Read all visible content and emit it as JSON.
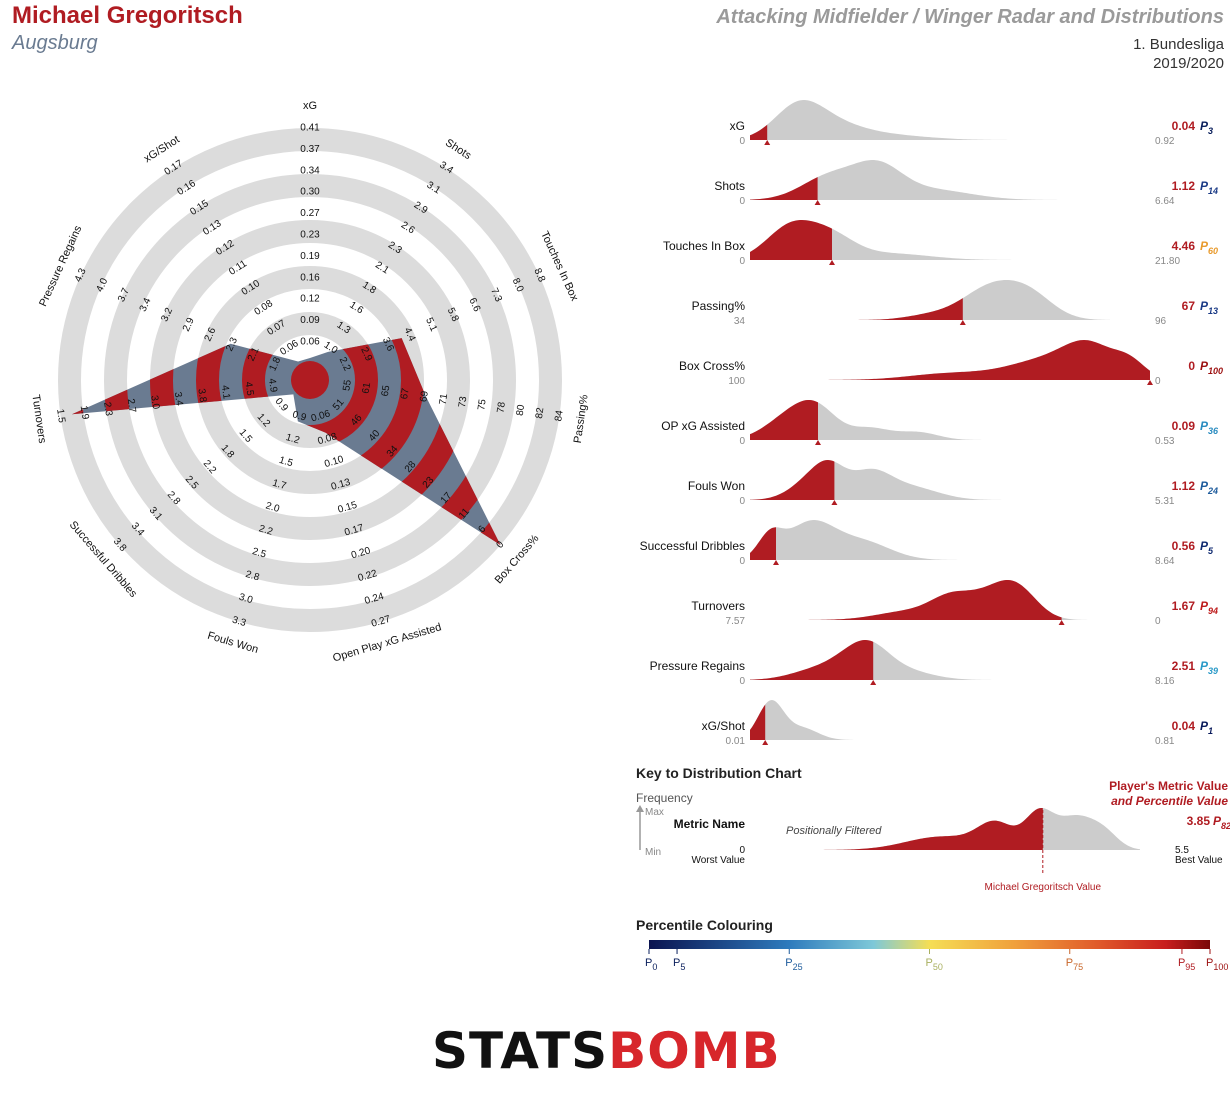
{
  "header": {
    "player_name": "Michael Gregoritsch",
    "team": "Augsburg",
    "title": "Attacking Midfielder / Winger Radar and Distributions",
    "league": "1. Bundesliga",
    "season": "2019/2020"
  },
  "colors": {
    "player_red": "#b01c22",
    "radar_blue": "#6a7b91",
    "ring_grey": "#dcdcdc",
    "dist_grey": "#cccccc"
  },
  "chart_data": [
    {
      "type": "radar",
      "metrics": [
        {
          "name": "xG",
          "ticks": [
            "0.06",
            "0.09",
            "0.12",
            "0.16",
            "0.19",
            "0.23",
            "0.27",
            "0.30",
            "0.34",
            "0.37",
            "0.41"
          ],
          "value": 0.04
        },
        {
          "name": "Shots",
          "ticks": [
            "1.0",
            "1.3",
            "1.6",
            "1.8",
            "2.1",
            "2.3",
            "2.6",
            "2.9",
            "3.1",
            "3.4"
          ],
          "value": 1.12
        },
        {
          "name": "Touches In Box",
          "ticks": [
            "2.2",
            "2.9",
            "3.6",
            "4.4",
            "5.1",
            "5.8",
            "6.6",
            "7.3",
            "8.0",
            "8.8"
          ],
          "value": 4.46
        },
        {
          "name": "Passing%",
          "ticks": [
            "55",
            "61",
            "65",
            "67",
            "69",
            "71",
            "73",
            "75",
            "78",
            "80",
            "82",
            "84"
          ],
          "value": 67
        },
        {
          "name": "Box Cross%",
          "ticks": [
            "51",
            "46",
            "40",
            "34",
            "28",
            "23",
            "17",
            "11",
            "6",
            "0"
          ],
          "value": 0
        },
        {
          "name": "Open Play xG Assisted",
          "ticks": [
            "0.06",
            "0.08",
            "0.10",
            "0.13",
            "0.15",
            "0.17",
            "0.20",
            "0.22",
            "0.24",
            "0.27"
          ],
          "value": 0.09
        },
        {
          "name": "Fouls Won",
          "ticks": [
            "0.9",
            "1.2",
            "1.5",
            "1.7",
            "2.0",
            "2.2",
            "2.5",
            "2.8",
            "3.0",
            "3.3"
          ],
          "value": 1.12
        },
        {
          "name": "Successful Dribbles",
          "ticks": [
            "0.9",
            "1.2",
            "1.5",
            "1.8",
            "2.2",
            "2.5",
            "2.8",
            "3.1",
            "3.4",
            "3.8"
          ],
          "value": 0.56
        },
        {
          "name": "Turnovers",
          "ticks": [
            "4.9",
            "4.5",
            "4.1",
            "3.8",
            "3.4",
            "3.0",
            "2.7",
            "2.3",
            "1.9",
            "1.5"
          ],
          "value": 1.67
        },
        {
          "name": "Pressure Regains",
          "ticks": [
            "1.8",
            "2.1",
            "2.3",
            "2.6",
            "2.9",
            "3.2",
            "3.4",
            "3.7",
            "4.0",
            "4.3"
          ],
          "value": 2.51
        },
        {
          "name": "xG/Shot",
          "ticks": [
            "0.06",
            "0.07",
            "0.08",
            "0.10",
            "0.11",
            "0.12",
            "0.13",
            "0.15",
            "0.16",
            "0.17"
          ],
          "value": 0.04
        }
      ]
    },
    {
      "type": "area",
      "distributions": [
        {
          "name": "xG",
          "min": "0",
          "max": "0.92",
          "value": "0.04",
          "pct": 3,
          "marker": 0.043,
          "pct_color": "#0a1f5c"
        },
        {
          "name": "Shots",
          "min": "0",
          "max": "6.64",
          "value": "1.12",
          "pct": 14,
          "marker": 0.169,
          "pct_color": "#1a3a86"
        },
        {
          "name": "Touches In Box",
          "min": "0",
          "max": "21.80",
          "value": "4.46",
          "pct": 60,
          "marker": 0.205,
          "pct_color": "#e89a2c"
        },
        {
          "name": "Passing%",
          "min": "34",
          "max": "96",
          "value": "67",
          "pct": 13,
          "marker": 0.532,
          "pct_color": "#1a3a86"
        },
        {
          "name": "Box Cross%",
          "min": "100",
          "max": "0",
          "value": "0",
          "pct": 100,
          "marker": 1.0,
          "pct_color": "#9c1010"
        },
        {
          "name": "OP xG Assisted",
          "min": "0",
          "max": "0.53",
          "value": "0.09",
          "pct": 36,
          "marker": 0.17,
          "pct_color": "#2a8cc0"
        },
        {
          "name": "Fouls Won",
          "min": "0",
          "max": "5.31",
          "value": "1.12",
          "pct": 24,
          "marker": 0.211,
          "pct_color": "#1d5b9c"
        },
        {
          "name": "Successful Dribbles",
          "min": "0",
          "max": "8.64",
          "value": "0.56",
          "pct": 5,
          "marker": 0.065,
          "pct_color": "#0f2a70"
        },
        {
          "name": "Turnovers",
          "min": "7.57",
          "max": "0",
          "value": "1.67",
          "pct": 94,
          "marker": 0.779,
          "pct_color": "#bd1a1a"
        },
        {
          "name": "Pressure Regains",
          "min": "0",
          "max": "8.16",
          "value": "2.51",
          "pct": 39,
          "marker": 0.308,
          "pct_color": "#2a9ac8"
        },
        {
          "name": "xG/Shot",
          "min": "0.01",
          "max": "0.81",
          "value": "0.04",
          "pct": 1,
          "marker": 0.038,
          "pct_color": "#08195a"
        }
      ]
    }
  ],
  "key": {
    "title": "Key to Distribution Chart",
    "frequency": "Frequency",
    "max": "Max",
    "min": "Min",
    "metric_name": "Metric Name",
    "positionally_filtered": "Positionally Filtered",
    "worst_value_num": "0",
    "worst_value": "Worst Value",
    "best_value_num": "5.5",
    "best_value": "Best Value",
    "player_metric_line1": "Player's Metric Value",
    "player_metric_line2": "and Percentile Value",
    "example_value": "3.85",
    "example_pct": "82",
    "player_value_label": "Michael Gregoritsch Value"
  },
  "percentile": {
    "title": "Percentile Colouring",
    "ticks": [
      {
        "label": "0",
        "pos": 0,
        "color": "#0a1f5c"
      },
      {
        "label": "5",
        "pos": 0.05,
        "color": "#0a1f5c"
      },
      {
        "label": "25",
        "pos": 0.25,
        "color": "#1d5b9c"
      },
      {
        "label": "50",
        "pos": 0.5,
        "color": "#a9b060"
      },
      {
        "label": "75",
        "pos": 0.75,
        "color": "#c8662a"
      },
      {
        "label": "95",
        "pos": 0.95,
        "color": "#b01c22"
      },
      {
        "label": "100",
        "pos": 1.0,
        "color": "#9c1010"
      }
    ]
  },
  "logo": {
    "part1": "STATS",
    "part2": "BOMB"
  }
}
